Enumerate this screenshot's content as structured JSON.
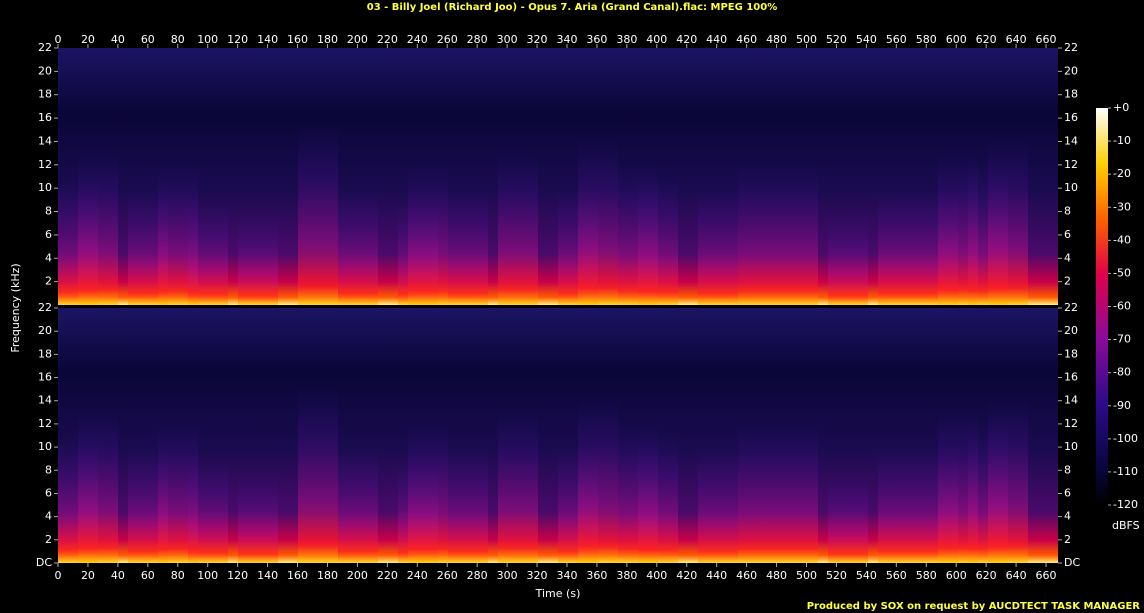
{
  "chart_data": {
    "type": "spectrogram",
    "title": "03 - Billy Joel (Richard Joo) - Opus 7. Aria (Grand Canal).flac: MPEG 100%",
    "xlabel": "Time (s)",
    "ylabel": "Frequency (kHz)",
    "xlim": [
      0,
      668
    ],
    "xticks": [
      0,
      20,
      40,
      60,
      80,
      100,
      120,
      140,
      160,
      180,
      200,
      220,
      240,
      260,
      280,
      300,
      320,
      340,
      360,
      380,
      400,
      420,
      440,
      460,
      480,
      500,
      520,
      540,
      560,
      580,
      600,
      620,
      640,
      660
    ],
    "channels": [
      {
        "ylim": [
          0,
          22
        ],
        "yticks": [
          2,
          4,
          6,
          8,
          10,
          12,
          14,
          16,
          18,
          20,
          22
        ]
      },
      {
        "ylim": [
          0,
          22
        ],
        "yticks": [
          {
            "value": 0,
            "label": "DC"
          },
          2,
          4,
          6,
          8,
          10,
          12,
          14,
          16,
          18,
          20,
          22
        ]
      }
    ],
    "colorbar": {
      "label": "dBFS",
      "lim": [
        -120,
        0
      ],
      "ticks": [
        {
          "value": 0,
          "label": "+0"
        },
        -10,
        -20,
        -30,
        -40,
        -50,
        -60,
        -70,
        -80,
        -90,
        -100,
        -110,
        -120
      ]
    },
    "footer": "Produced by SOX on request by AUCDTECT TASK MANAGER"
  }
}
